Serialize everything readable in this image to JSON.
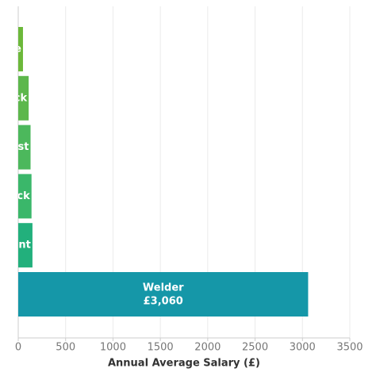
{
  "chart_data": {
    "type": "barh",
    "x_label": "Annual Average Salary (£)",
    "categories": [
      "e",
      "ck",
      "nst",
      "ck",
      "int",
      "Welder"
    ],
    "values": [
      50,
      110,
      130,
      140,
      150,
      3060
    ],
    "value_labels": [
      null,
      null,
      null,
      null,
      null,
      "£3,060"
    ],
    "colors": [
      "#6cb83a",
      "#5db74c",
      "#4cb85c",
      "#3ab76a",
      "#22b07c",
      "#1597a8"
    ],
    "xlim": [
      0,
      3500
    ],
    "xticks": [
      0,
      500,
      1000,
      1500,
      2000,
      2500,
      3000,
      3500
    ],
    "grid": true
  }
}
